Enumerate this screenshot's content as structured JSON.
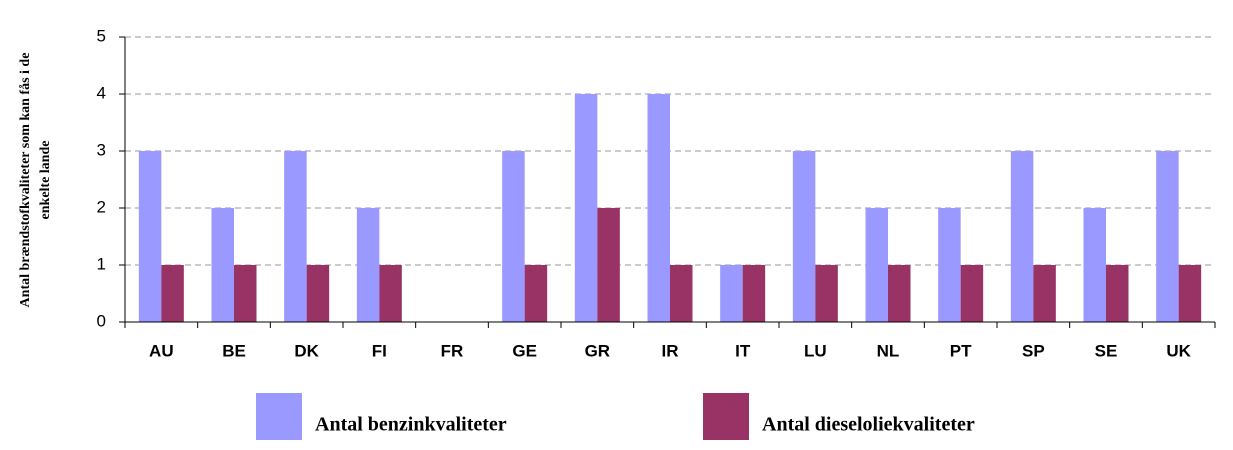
{
  "chart_data": {
    "type": "bar",
    "y_label": [
      "Antal brændstofkvaliteter som kan fås i de",
      "enkelte lande"
    ],
    "categories": [
      "AU",
      "BE",
      "DK",
      "FI",
      "FR",
      "GE",
      "GR",
      "IR",
      "IT",
      "LU",
      "NL",
      "PT",
      "SP",
      "SE",
      "UK"
    ],
    "series": [
      {
        "name": "Antal benzinkvaliteter",
        "color": "#9999ff",
        "values": [
          3,
          2,
          3,
          2,
          0,
          3,
          4,
          4,
          1,
          3,
          2,
          2,
          3,
          2,
          3
        ]
      },
      {
        "name": "Antal dieseloliekvaliteter",
        "color": "#993366",
        "values": [
          1,
          1,
          1,
          1,
          0,
          1,
          2,
          1,
          1,
          1,
          1,
          1,
          1,
          1,
          1
        ]
      }
    ],
    "ylim": [
      0,
      5
    ],
    "yticks": [
      0,
      1,
      2,
      3,
      4,
      5
    ],
    "grid": true,
    "legend": "bottom"
  }
}
